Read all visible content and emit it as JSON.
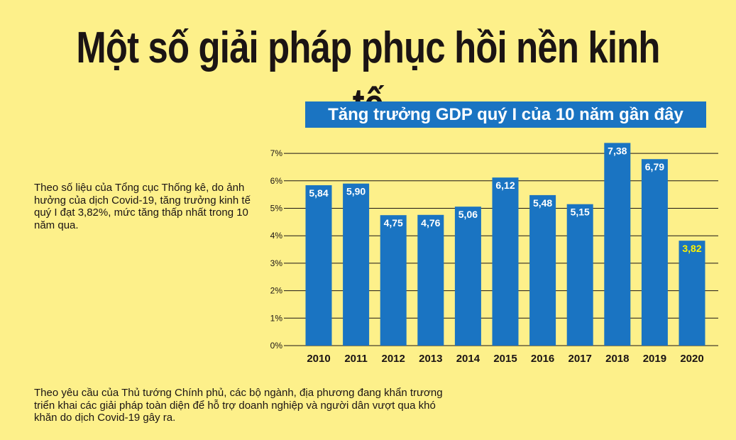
{
  "page": {
    "title": "Một số giải pháp phục hồi nền kinh tế",
    "note_left": "Theo số liệu của Tổng cục Thống kê, do ảnh hưởng của dịch Covid-19, tăng trưởng kinh tế quý I đạt 3,82%, mức tăng thấp nhất trong 10 năm qua.",
    "note_bottom": "Theo yêu cầu của Thủ tướng Chính phủ, các bộ ngành, địa phương đang khẩn trương triển khai các giải pháp toàn diện để hỗ trợ doanh nghiệp và người dân vượt qua khó khăn do dịch Covid-19 gây ra."
  },
  "colors": {
    "background": "#fdf08a",
    "bar": "#1a74c2",
    "label_default": "#ffffff",
    "label_highlight": "#fff200",
    "grid": "#1b1414"
  },
  "chart_data": {
    "type": "bar",
    "title": "Tăng trưởng GDP quý I của 10 năm gần đây",
    "categories": [
      "2010",
      "2011",
      "2012",
      "2013",
      "2014",
      "2015",
      "2016",
      "2017",
      "2018",
      "2019",
      "2020"
    ],
    "values": [
      5.84,
      5.9,
      4.75,
      4.76,
      5.06,
      6.12,
      5.48,
      5.15,
      7.38,
      6.79,
      3.82
    ],
    "value_labels": [
      "5,84",
      "5,90",
      "4,75",
      "4,76",
      "5,06",
      "6,12",
      "5,48",
      "5,15",
      "7,38",
      "6,79",
      "3,82"
    ],
    "highlight_index": 10,
    "yticks": [
      "0%",
      "1%",
      "2%",
      "3%",
      "4%",
      "5%",
      "6%",
      "7%"
    ],
    "ylim": [
      0,
      7
    ],
    "grid": true,
    "legend": "none"
  }
}
